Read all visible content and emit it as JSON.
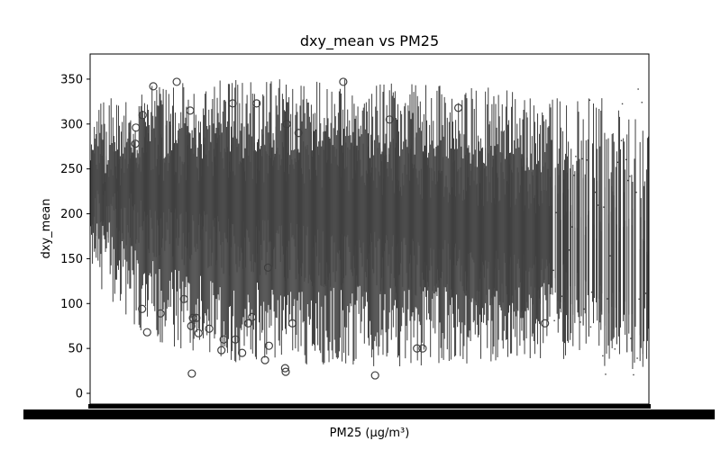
{
  "chart_data": {
    "type": "box",
    "title": "dxy_mean vs PM25",
    "xlabel": "PM25 (µg/m³)",
    "ylabel": "dxy_mean",
    "ylim": [
      -12,
      378
    ],
    "yticks": [
      0,
      50,
      100,
      150,
      200,
      250,
      300,
      350
    ],
    "x_tick_labels_legible": false,
    "n_categories": 600,
    "grid": false,
    "legend": "none",
    "box_color": "#3f3f3f",
    "profile": {
      "segments_x_fraction": [
        0.0,
        0.1,
        0.25,
        0.45,
        0.6,
        0.75,
        0.85,
        0.92,
        1.0
      ],
      "median": [
        230,
        235,
        230,
        215,
        200,
        185,
        170,
        140,
        120
      ],
      "q1": [
        200,
        185,
        165,
        150,
        140,
        125,
        110,
        90,
        70
      ],
      "q3": [
        250,
        265,
        270,
        260,
        250,
        235,
        220,
        200,
        180
      ],
      "whisker_low": [
        130,
        60,
        35,
        30,
        30,
        30,
        35,
        30,
        20
      ],
      "whisker_high": [
        320,
        345,
        350,
        350,
        345,
        340,
        330,
        330,
        300
      ]
    },
    "outliers": [
      {
        "x": 0.081,
        "y": 278
      },
      {
        "x": 0.082,
        "y": 296
      },
      {
        "x": 0.094,
        "y": 310
      },
      {
        "x": 0.113,
        "y": 342
      },
      {
        "x": 0.155,
        "y": 347
      },
      {
        "x": 0.179,
        "y": 315
      },
      {
        "x": 0.255,
        "y": 323
      },
      {
        "x": 0.298,
        "y": 323
      },
      {
        "x": 0.453,
        "y": 347
      },
      {
        "x": 0.536,
        "y": 305
      },
      {
        "x": 0.659,
        "y": 318
      },
      {
        "x": 0.093,
        "y": 94
      },
      {
        "x": 0.102,
        "y": 68
      },
      {
        "x": 0.126,
        "y": 89
      },
      {
        "x": 0.168,
        "y": 105
      },
      {
        "x": 0.181,
        "y": 75
      },
      {
        "x": 0.184,
        "y": 84
      },
      {
        "x": 0.19,
        "y": 84
      },
      {
        "x": 0.194,
        "y": 67
      },
      {
        "x": 0.182,
        "y": 22
      },
      {
        "x": 0.235,
        "y": 48
      },
      {
        "x": 0.239,
        "y": 60
      },
      {
        "x": 0.26,
        "y": 60
      },
      {
        "x": 0.29,
        "y": 85
      },
      {
        "x": 0.313,
        "y": 37
      },
      {
        "x": 0.32,
        "y": 53
      },
      {
        "x": 0.349,
        "y": 28
      },
      {
        "x": 0.35,
        "y": 24
      },
      {
        "x": 0.51,
        "y": 20
      },
      {
        "x": 0.585,
        "y": 50
      },
      {
        "x": 0.595,
        "y": 50
      },
      {
        "x": 0.814,
        "y": 78
      },
      {
        "x": 0.373,
        "y": 290
      },
      {
        "x": 0.352,
        "y": 300
      },
      {
        "x": 0.272,
        "y": 45
      },
      {
        "x": 0.213,
        "y": 72
      },
      {
        "x": 0.283,
        "y": 78
      },
      {
        "x": 0.362,
        "y": 78
      },
      {
        "x": 0.318,
        "y": 140
      }
    ]
  }
}
